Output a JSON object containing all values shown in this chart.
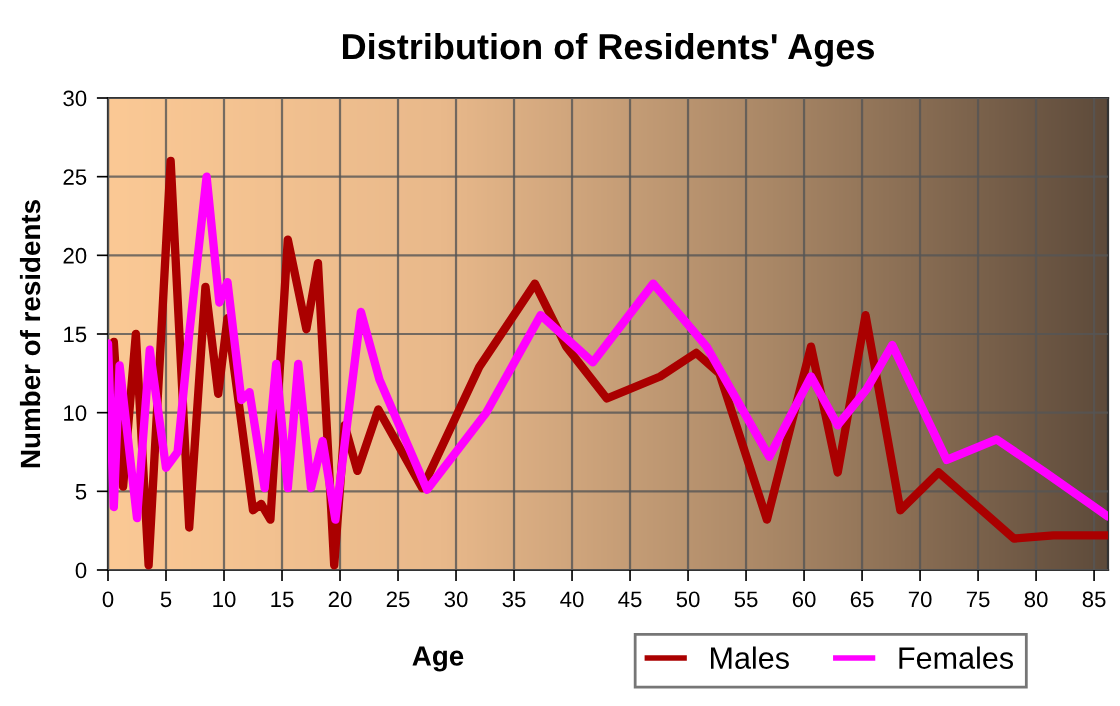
{
  "chart_data": {
    "type": "line",
    "title": "Distribution of Residents' Ages",
    "xlabel": "Age",
    "ylabel": "Number of residents",
    "xlim": [
      0,
      86.2
    ],
    "xticks": [
      0,
      5,
      10,
      15,
      20,
      25,
      30,
      35,
      40,
      45,
      50,
      55,
      60,
      65,
      70,
      75,
      80,
      85
    ],
    "ylim": [
      0,
      30
    ],
    "yticks": [
      0,
      5,
      10,
      15,
      20,
      25,
      30
    ],
    "grid": true,
    "legend": "bottom right",
    "line_style": "solid",
    "series": [
      {
        "name": "Males",
        "color": "#aa0000",
        "x": [
          0,
          0.5,
          1.3,
          2.4,
          3.5,
          5.4,
          7,
          8.4,
          9.5,
          10.3,
          12.5,
          13.2,
          14,
          15.5,
          17.1,
          18.1,
          19.5,
          20.4,
          21.5,
          23.3,
          27.1,
          32,
          36.8,
          39.5,
          43,
          47.6,
          50.7,
          52.7,
          56.8,
          60.6,
          62.9,
          65.3,
          68.3,
          71.6,
          78.1,
          81.5,
          86.2
        ],
        "values": [
          9.5,
          14.5,
          5.3,
          15,
          0.3,
          26,
          2.7,
          18,
          11.2,
          16,
          3.8,
          4.2,
          3.2,
          21,
          15.3,
          19.5,
          0.3,
          9.2,
          6.3,
          10.2,
          5.2,
          12.9,
          18.2,
          14.2,
          10.9,
          12.3,
          13.8,
          12.5,
          3.2,
          14.2,
          6.2,
          16.2,
          3.8,
          6.2,
          2,
          2.2,
          2.2
        ]
      },
      {
        "name": "Females",
        "color": "#ff00ff",
        "x": [
          0,
          0.5,
          1,
          2.5,
          3.6,
          5,
          6,
          7,
          8.5,
          9.6,
          10.3,
          11.5,
          12.2,
          13.5,
          14.5,
          15.5,
          16.4,
          17.5,
          18.5,
          19.6,
          21.8,
          23.4,
          27.5,
          32.6,
          37.3,
          41.8,
          47,
          51.6,
          57,
          60.6,
          62.9,
          65.4,
          67.6,
          72.3,
          76.6,
          80.8,
          86.2
        ],
        "values": [
          14.4,
          4,
          13,
          3.3,
          14,
          6.5,
          7.5,
          15,
          25,
          17,
          18.3,
          10.8,
          11.3,
          5.2,
          13.1,
          5.2,
          13.1,
          5.2,
          8.2,
          3.2,
          16.4,
          12.1,
          5.1,
          10,
          16.2,
          13.2,
          18.2,
          14.2,
          7.2,
          12.3,
          9.2,
          11.5,
          14.3,
          7,
          8.3,
          6.2,
          3.4
        ]
      }
    ]
  }
}
